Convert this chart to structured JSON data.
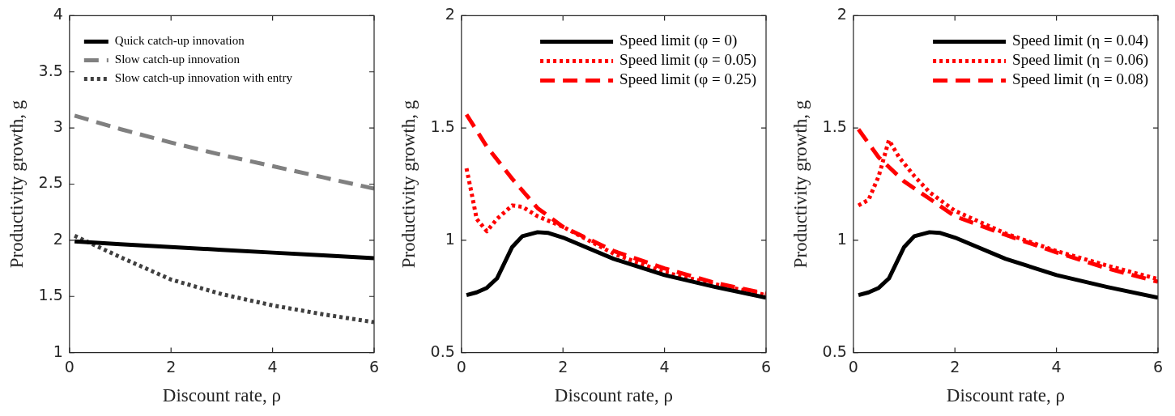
{
  "chart_data": [
    {
      "type": "line",
      "xlabel": "Discount rate, ρ",
      "ylabel": "Productivity growth, g",
      "xlim": [
        0,
        6
      ],
      "xticks": [
        0,
        2,
        4,
        6
      ],
      "ylim": [
        1,
        4
      ],
      "yticks": [
        1,
        1.5,
        2,
        2.5,
        3,
        3.5,
        4
      ],
      "grid": false,
      "legend": "top left",
      "marker": "none",
      "x": [
        0.1,
        1,
        2,
        3,
        4,
        5,
        6
      ],
      "series": [
        {
          "name": "Quick catch-up innovation",
          "color": "#000000",
          "line_style": "solid",
          "values": [
            1.99,
            1.965,
            1.94,
            1.915,
            1.89,
            1.865,
            1.84
          ]
        },
        {
          "name": "Slow catch-up innovation",
          "color": "#808080",
          "line_style": "dashed",
          "values": [
            3.11,
            2.99,
            2.87,
            2.76,
            2.66,
            2.56,
            2.46
          ]
        },
        {
          "name": "Slow catch-up innovation with entry",
          "color": "#404040",
          "line_style": "dotted",
          "values": [
            2.04,
            1.85,
            1.65,
            1.52,
            1.42,
            1.34,
            1.27
          ]
        }
      ]
    },
    {
      "type": "line",
      "xlabel": "Discount rate, ρ",
      "ylabel": "Productivity growth, g",
      "xlim": [
        0,
        6
      ],
      "xticks": [
        0,
        2,
        4,
        6
      ],
      "ylim": [
        0.5,
        2
      ],
      "yticks": [
        0.5,
        1,
        1.5,
        2
      ],
      "grid": false,
      "legend": "top right",
      "marker": "none",
      "series": [
        {
          "name": "Speed limit (φ = 0)",
          "color": "#000000",
          "line_style": "solid",
          "x": [
            0.1,
            0.3,
            0.5,
            0.7,
            1,
            1.2,
            1.5,
            1.7,
            2,
            3,
            4,
            5,
            6
          ],
          "values": [
            0.756,
            0.768,
            0.788,
            0.83,
            0.97,
            1.018,
            1.036,
            1.033,
            1.012,
            0.917,
            0.845,
            0.792,
            0.744
          ]
        },
        {
          "name": "Speed limit (φ = 0.05)",
          "color": "#ff0000",
          "line_style": "dotted",
          "x": [
            0.1,
            0.2,
            0.3,
            0.5,
            0.7,
            1,
            1.2,
            1.5,
            2,
            3,
            4,
            5,
            6
          ],
          "values": [
            1.32,
            1.21,
            1.095,
            1.04,
            1.095,
            1.155,
            1.149,
            1.107,
            1.06,
            0.94,
            0.857,
            0.804,
            0.756
          ]
        },
        {
          "name": "Speed limit (φ = 0.25)",
          "color": "#ff0000",
          "line_style": "dashed",
          "x": [
            0.1,
            0.5,
            1,
            1.5,
            2,
            3,
            4,
            5,
            6
          ],
          "values": [
            1.56,
            1.417,
            1.274,
            1.143,
            1.06,
            0.952,
            0.875,
            0.81,
            0.762
          ]
        }
      ]
    },
    {
      "type": "line",
      "xlabel": "Discount rate, ρ",
      "ylabel": "Productivity growth, g",
      "xlim": [
        0,
        6
      ],
      "xticks": [
        0,
        2,
        4,
        6
      ],
      "ylim": [
        0.5,
        2
      ],
      "yticks": [
        0.5,
        1,
        1.5,
        2
      ],
      "grid": false,
      "legend": "top right",
      "marker": "none",
      "series": [
        {
          "name": "Speed limit (η = 0.04)",
          "color": "#000000",
          "line_style": "solid",
          "x": [
            0.1,
            0.3,
            0.5,
            0.7,
            1,
            1.2,
            1.5,
            1.7,
            2,
            3,
            4,
            5,
            6
          ],
          "values": [
            0.756,
            0.768,
            0.788,
            0.83,
            0.97,
            1.018,
            1.036,
            1.033,
            1.012,
            0.917,
            0.845,
            0.792,
            0.744
          ]
        },
        {
          "name": "Speed limit (η = 0.06)",
          "color": "#ff0000",
          "line_style": "dotted",
          "x": [
            0.1,
            0.3,
            0.5,
            0.7,
            0.9,
            1.2,
            1.5,
            2,
            3,
            4,
            5,
            6
          ],
          "values": [
            1.155,
            1.18,
            1.286,
            1.446,
            1.37,
            1.286,
            1.214,
            1.131,
            1.03,
            0.952,
            0.887,
            0.827
          ]
        },
        {
          "name": "Speed limit (η = 0.08)",
          "color": "#ff0000",
          "line_style": "dashed",
          "x": [
            0.1,
            0.5,
            1,
            1.5,
            2,
            3,
            4,
            5,
            6
          ],
          "values": [
            1.494,
            1.369,
            1.262,
            1.185,
            1.107,
            1.024,
            0.946,
            0.875,
            0.815
          ]
        }
      ]
    }
  ]
}
